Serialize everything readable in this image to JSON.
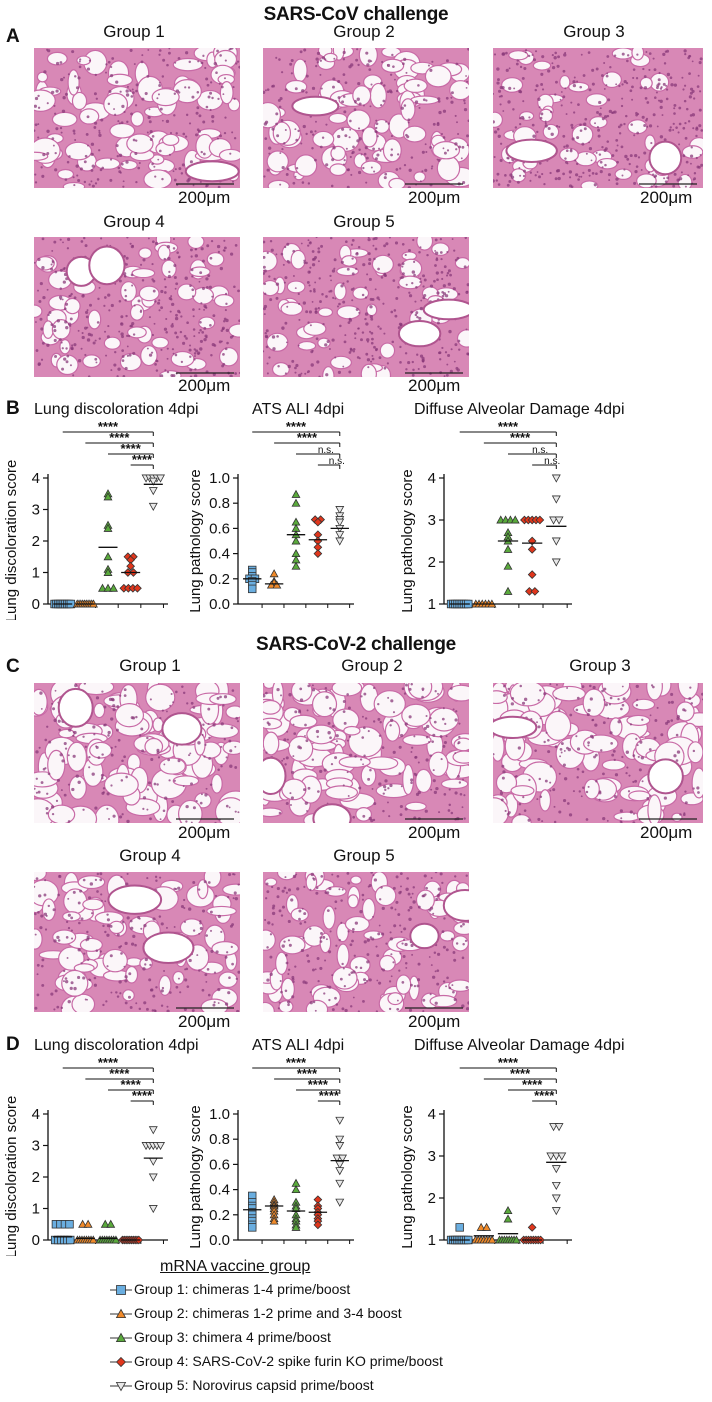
{
  "panels": {
    "A_letter": "A",
    "B_letter": "B",
    "C_letter": "C",
    "D_letter": "D",
    "title_A": "SARS-CoV challenge",
    "title_C": "SARS-CoV-2 challenge"
  },
  "histology": {
    "A": [
      {
        "label": "Group 1",
        "scale": "200μm"
      },
      {
        "label": "Group 2",
        "scale": "200μm"
      },
      {
        "label": "Group 3",
        "scale": "200μm"
      },
      {
        "label": "Group 4",
        "scale": "200μm"
      },
      {
        "label": "Group 5",
        "scale": "200μm"
      }
    ],
    "C": [
      {
        "label": "Group 1",
        "scale": "200μm"
      },
      {
        "label": "Group 2",
        "scale": "200μm"
      },
      {
        "label": "Group 3",
        "scale": "200μm"
      },
      {
        "label": "Group 4",
        "scale": "200μm"
      },
      {
        "label": "Group 5",
        "scale": "200μm"
      }
    ]
  },
  "colors": {
    "g1": "#6aaee0",
    "g2": "#f08a2a",
    "g3": "#5aaa3c",
    "g4": "#e0361c",
    "g5": "#e8e8e8",
    "tissue": "#d888b6",
    "tissue_dark": "#8a3a7a",
    "background": "#f4eef2"
  },
  "legend": {
    "title": "mRNA vaccine group",
    "items": [
      {
        "label": "Group 1: chimeras 1-4 prime/boost",
        "marker": "square",
        "color": "#6aaee0"
      },
      {
        "label": "Group 2: chimeras 1-2 prime and 3-4 boost",
        "marker": "triangle-up",
        "color": "#f08a2a"
      },
      {
        "label": "Group 3: chimera 4 prime/boost",
        "marker": "triangle-up",
        "color": "#5aaa3c"
      },
      {
        "label": "Group 4: SARS-CoV-2 spike furin KO prime/boost",
        "marker": "diamond",
        "color": "#e0361c"
      },
      {
        "label": "Group 5: Norovirus capsid prime/boost",
        "marker": "triangle-down",
        "color": "#e8e8e8"
      }
    ]
  },
  "chart_data": [
    {
      "panel": "B",
      "type": "scatter",
      "title": "Lung discoloration 4dpi",
      "ylabel": "Lung discoloration score",
      "ylim": [
        0,
        4
      ],
      "yticks": [
        "0",
        "1",
        "2",
        "3",
        "4"
      ],
      "groups": [
        {
          "values": [
            0,
            0,
            0,
            0,
            0,
            0,
            0,
            0,
            0,
            0
          ],
          "mean": 0
        },
        {
          "values": [
            0,
            0,
            0,
            0,
            0,
            0,
            0,
            0,
            0,
            0
          ],
          "mean": 0
        },
        {
          "values": [
            3.5,
            3.4,
            2.5,
            2.4,
            1.5,
            1.1,
            1.0,
            0.5,
            0.5,
            0.5
          ],
          "mean": 1.8
        },
        {
          "values": [
            1.5,
            1.5,
            1.4,
            1.2,
            1.0,
            1.0,
            0.5,
            0.5,
            0.5,
            0.5
          ],
          "mean": 1.0
        },
        {
          "values": [
            4.0,
            4.0,
            4.0,
            4.0,
            4.0,
            3.9,
            3.6,
            3.1
          ],
          "mean": 3.8
        }
      ],
      "sig": [
        "****",
        "****",
        "****",
        "****"
      ]
    },
    {
      "panel": "B",
      "type": "scatter",
      "title": "ATS ALI 4dpi",
      "ylabel": "Lung pathology score",
      "ylim": [
        0,
        1.0
      ],
      "yticks": [
        "0.0",
        "0.2",
        "0.4",
        "0.6",
        "0.8",
        "1.0"
      ],
      "groups": [
        {
          "values": [
            0.27,
            0.25,
            0.22,
            0.2,
            0.2,
            0.18,
            0.15,
            0.12
          ],
          "mean": 0.2
        },
        {
          "values": [
            0.24,
            0.18,
            0.17,
            0.15,
            0.15
          ],
          "mean": 0.16
        },
        {
          "values": [
            0.87,
            0.8,
            0.65,
            0.6,
            0.55,
            0.5,
            0.4,
            0.35,
            0.3
          ],
          "mean": 0.55
        },
        {
          "values": [
            0.67,
            0.67,
            0.65,
            0.55,
            0.5,
            0.45,
            0.4
          ],
          "mean": 0.51
        },
        {
          "values": [
            0.75,
            0.7,
            0.67,
            0.65,
            0.6,
            0.55,
            0.5
          ],
          "mean": 0.6
        }
      ],
      "sig": [
        "****",
        "****",
        "n.s.",
        "n.s."
      ]
    },
    {
      "panel": "B",
      "type": "scatter",
      "title": "Diffuse Alveolar Damage 4dpi",
      "ylabel": "Lung pathology score",
      "ylim": [
        1,
        4
      ],
      "yticks": [
        "1",
        "2",
        "3",
        "4"
      ],
      "groups": [
        {
          "values": [
            1,
            1,
            1,
            1,
            1,
            1,
            1,
            1,
            1
          ],
          "mean": 1
        },
        {
          "values": [
            1,
            1,
            1,
            1,
            1,
            1
          ],
          "mean": 1
        },
        {
          "values": [
            3,
            3,
            3,
            3,
            2.7,
            2.6,
            2.5,
            2.3,
            1.9,
            1.3
          ],
          "mean": 2.5
        },
        {
          "values": [
            3,
            3,
            3,
            3,
            3,
            2.5,
            2.3,
            1.7,
            1.3,
            1.3
          ],
          "mean": 2.45
        },
        {
          "values": [
            4,
            3.5,
            3,
            3,
            2.5,
            2
          ],
          "mean": 2.85
        }
      ],
      "sig": [
        "****",
        "****",
        "n.s.",
        "n.s."
      ]
    },
    {
      "panel": "D",
      "type": "scatter",
      "title": "Lung discoloration 4dpi",
      "ylabel": "Lung discoloration score",
      "ylim": [
        0,
        4
      ],
      "yticks": [
        "0",
        "1",
        "2",
        "3",
        "4"
      ],
      "groups": [
        {
          "values": [
            0.5,
            0.5,
            0.5,
            0.5,
            0,
            0,
            0,
            0,
            0,
            0
          ],
          "mean": 0.1
        },
        {
          "values": [
            0.5,
            0.5,
            0,
            0,
            0,
            0,
            0,
            0,
            0,
            0
          ],
          "mean": 0.05
        },
        {
          "values": [
            0.5,
            0.5,
            0,
            0,
            0,
            0,
            0,
            0,
            0,
            0
          ],
          "mean": 0.05
        },
        {
          "values": [
            0,
            0,
            0,
            0,
            0,
            0,
            0,
            0,
            0,
            0
          ],
          "mean": 0
        },
        {
          "values": [
            3.5,
            3.0,
            3.0,
            3.0,
            3.0,
            3.0,
            2.5,
            2.0,
            1.0
          ],
          "mean": 2.6
        }
      ],
      "sig": [
        "****",
        "****",
        "****",
        "****"
      ]
    },
    {
      "panel": "D",
      "type": "scatter",
      "title": "ATS ALI 4dpi",
      "ylabel": "Lung pathology score",
      "ylim": [
        0,
        1.0
      ],
      "yticks": [
        "0.0",
        "0.2",
        "0.4",
        "0.6",
        "0.8",
        "1.0"
      ],
      "groups": [
        {
          "values": [
            0.35,
            0.3,
            0.27,
            0.25,
            0.22,
            0.2,
            0.17,
            0.15,
            0.12,
            0.1
          ],
          "mean": 0.24
        },
        {
          "values": [
            0.32,
            0.3,
            0.28,
            0.27,
            0.25,
            0.23,
            0.2,
            0.17,
            0.15
          ],
          "mean": 0.27
        },
        {
          "values": [
            0.45,
            0.4,
            0.3,
            0.27,
            0.25,
            0.2,
            0.17,
            0.15,
            0.12,
            0.1
          ],
          "mean": 0.23
        },
        {
          "values": [
            0.32,
            0.27,
            0.25,
            0.22,
            0.2,
            0.17,
            0.15,
            0.12
          ],
          "mean": 0.22
        },
        {
          "values": [
            0.95,
            0.8,
            0.75,
            0.65,
            0.65,
            0.6,
            0.55,
            0.45,
            0.3
          ],
          "mean": 0.63
        }
      ],
      "sig": [
        "****",
        "****",
        "****",
        "****"
      ]
    },
    {
      "panel": "D",
      "type": "scatter",
      "title": "Diffuse Alveolar Damage 4dpi",
      "ylabel": "Lung pathology score",
      "ylim": [
        1,
        4
      ],
      "yticks": [
        "1",
        "2",
        "3",
        "4"
      ],
      "groups": [
        {
          "values": [
            1.3,
            1,
            1,
            1,
            1,
            1,
            1,
            1,
            1,
            1
          ],
          "mean": 1
        },
        {
          "values": [
            1.3,
            1.3,
            1,
            1,
            1,
            1,
            1,
            1,
            1
          ],
          "mean": 1.1
        },
        {
          "values": [
            1.7,
            1.5,
            1,
            1,
            1,
            1,
            1,
            1,
            1,
            1
          ],
          "mean": 1.15
        },
        {
          "values": [
            1.3,
            1,
            1,
            1,
            1,
            1,
            1,
            1,
            1
          ],
          "mean": 1
        },
        {
          "values": [
            3.7,
            3.7,
            3,
            3,
            3,
            2.7,
            2.3,
            2,
            1.7
          ],
          "mean": 2.85
        }
      ],
      "sig": [
        "****",
        "****",
        "****",
        "****"
      ]
    }
  ]
}
